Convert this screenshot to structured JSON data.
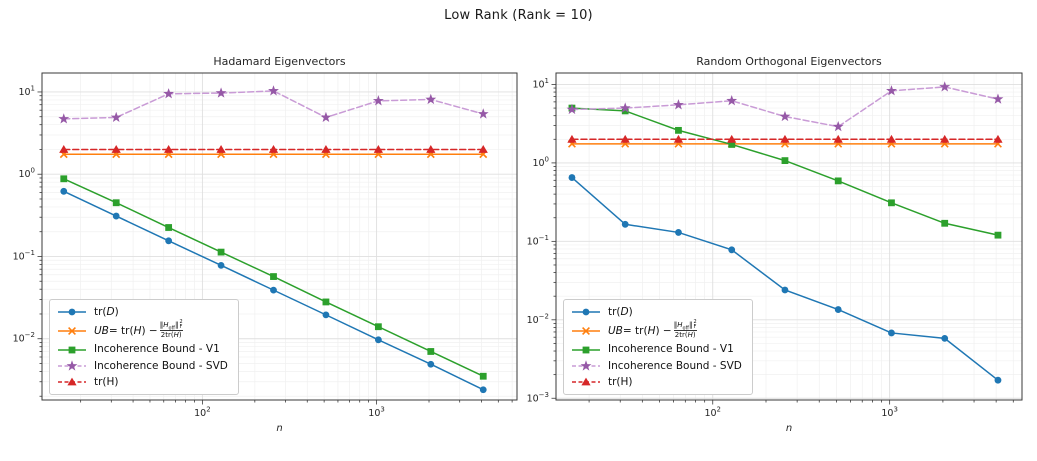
{
  "figure": {
    "title": "Low Rank (Rank = 10)",
    "background": "#ffffff",
    "axis_text_color": "#262626",
    "spine_color": "#3a3a3a",
    "major_grid_color": "#dfdfdf",
    "minor_grid_color": "#f0f0f0"
  },
  "legend_labels": {
    "trD": [
      {
        "t": "tr("
      },
      {
        "i": "D"
      },
      {
        "t": ")"
      }
    ],
    "UB": [
      {
        "i": "UB"
      },
      {
        "t": " = tr("
      },
      {
        "i": "H"
      },
      {
        "t": ") − "
      },
      {
        "frac": {
          "num": [
            {
              "t": "‖"
            },
            {
              "i": "H"
            },
            {
              "sub": "off"
            },
            {
              "t": "‖"
            },
            {
              "supsub": [
                "2",
                "F"
              ]
            }
          ],
          "den": [
            {
              "t": "2tr("
            },
            {
              "i": "H"
            },
            {
              "t": ")"
            }
          ]
        }
      }
    ],
    "V1": [
      {
        "t": "Incoherence Bound - V1"
      }
    ],
    "SVD": [
      {
        "t": "Incoherence Bound - SVD"
      }
    ],
    "trH": [
      {
        "t": "tr(H)"
      }
    ]
  },
  "chart_data": [
    {
      "type": "line",
      "title": "Hadamard Eigenvectors",
      "xlabel": "n",
      "xscale": "log",
      "yscale": "log",
      "xlim": [
        12,
        6400
      ],
      "ylim": [
        0.0018,
        17
      ],
      "x_tick_exponents": [
        2,
        3
      ],
      "y_tick_exponents": [
        1,
        0,
        -1,
        -2
      ],
      "grid": "major+minor",
      "legend_position": "lower left",
      "x": [
        16,
        32,
        64,
        128,
        256,
        512,
        1024,
        2048,
        4096
      ],
      "series": [
        {
          "id": "trD",
          "name": "tr(D)",
          "color": "#1f77b4",
          "marker": "circle",
          "linestyle": "solid",
          "values": [
            0.62,
            0.31,
            0.155,
            0.078,
            0.039,
            0.0195,
            0.0097,
            0.0049,
            0.0024
          ]
        },
        {
          "id": "UB",
          "name": "UB = tr(H) − ‖H_off‖²_F / (2tr(H))",
          "color": "#ff7f0e",
          "marker": "x",
          "linestyle": "solid",
          "values": [
            1.75,
            1.75,
            1.75,
            1.75,
            1.75,
            1.75,
            1.75,
            1.75,
            1.75
          ]
        },
        {
          "id": "V1",
          "name": "Incoherence Bound - V1",
          "color": "#2ca02c",
          "marker": "square",
          "linestyle": "solid",
          "values": [
            0.88,
            0.45,
            0.225,
            0.113,
            0.057,
            0.028,
            0.014,
            0.007,
            0.0035
          ]
        },
        {
          "id": "SVD",
          "name": "Incoherence Bound - SVD",
          "color": "#c99bd6",
          "marker_color": "#9659a7",
          "marker": "star",
          "linestyle": "dashed",
          "values": [
            4.7,
            4.9,
            9.5,
            9.7,
            10.3,
            4.9,
            7.8,
            8.1,
            5.4
          ]
        },
        {
          "id": "trH",
          "name": "tr(H)",
          "color": "#d62728",
          "marker": "triangle",
          "linestyle": "dashed",
          "values": [
            2.0,
            2.0,
            2.0,
            2.0,
            2.0,
            2.0,
            2.0,
            2.0,
            2.0
          ]
        }
      ]
    },
    {
      "type": "line",
      "title": "Random Orthogonal Eigenvectors",
      "xlabel": "n",
      "xscale": "log",
      "yscale": "log",
      "xlim": [
        13,
        5600
      ],
      "ylim": [
        0.00095,
        14
      ],
      "x_tick_exponents": [
        2,
        3
      ],
      "y_tick_exponents": [
        1,
        0,
        -1,
        -2,
        -3
      ],
      "grid": "major+minor",
      "legend_position": "lower left",
      "x": [
        16,
        32,
        64,
        128,
        256,
        512,
        1024,
        2048,
        4096
      ],
      "series": [
        {
          "id": "trD",
          "name": "tr(D)",
          "color": "#1f77b4",
          "marker": "circle",
          "linestyle": "solid",
          "values": [
            0.65,
            0.165,
            0.13,
            0.078,
            0.024,
            0.0135,
            0.0068,
            0.0058,
            0.0017
          ]
        },
        {
          "id": "UB",
          "name": "UB = tr(H) − ‖H_off‖²_F / (2tr(H))",
          "color": "#ff7f0e",
          "marker": "x",
          "linestyle": "solid",
          "values": [
            1.75,
            1.75,
            1.75,
            1.75,
            1.75,
            1.75,
            1.75,
            1.75,
            1.75
          ]
        },
        {
          "id": "V1",
          "name": "Incoherence Bound - V1",
          "color": "#2ca02c",
          "marker": "square",
          "linestyle": "solid",
          "values": [
            5.0,
            4.6,
            2.6,
            1.72,
            1.07,
            0.59,
            0.31,
            0.17,
            0.12
          ]
        },
        {
          "id": "SVD",
          "name": "Incoherence Bound - SVD",
          "color": "#c99bd6",
          "marker_color": "#9659a7",
          "marker": "star",
          "linestyle": "dashed",
          "values": [
            4.8,
            5.0,
            5.5,
            6.2,
            3.9,
            2.9,
            8.3,
            9.3,
            6.5
          ]
        },
        {
          "id": "trH",
          "name": "tr(H)",
          "color": "#d62728",
          "marker": "triangle",
          "linestyle": "dashed",
          "values": [
            2.0,
            2.0,
            2.0,
            2.0,
            2.0,
            2.0,
            2.0,
            2.0,
            2.0
          ]
        }
      ]
    }
  ]
}
